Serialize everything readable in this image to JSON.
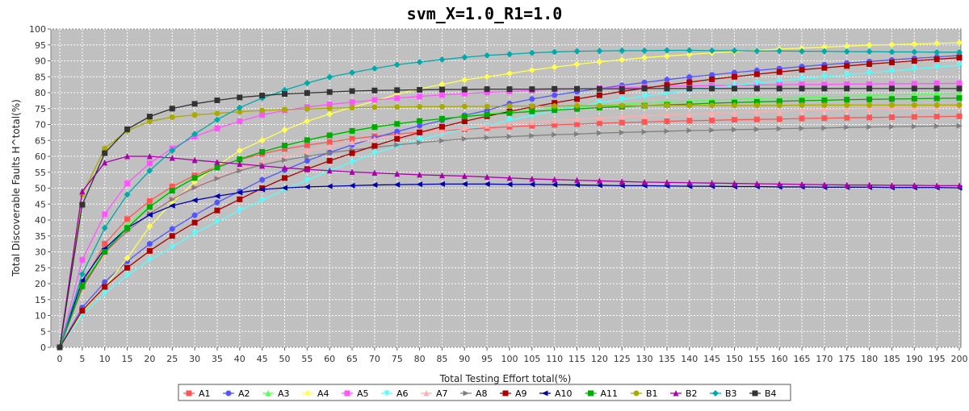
{
  "chart_data": {
    "type": "line",
    "title": "svm_X=1.0_R1=1.0",
    "xlabel": "Total Testing Effort total(%)",
    "ylabel": "Total Discoverable Faults H^total(%)",
    "xlim": [
      0,
      200
    ],
    "ylim": [
      0,
      100
    ],
    "x_ticks": [
      "0",
      "5",
      "10",
      "15",
      "20",
      "25",
      "30",
      "35",
      "40",
      "45",
      "50",
      "55",
      "60",
      "65",
      "70",
      "75",
      "80",
      "85",
      "90",
      "95",
      "100",
      "105",
      "110",
      "115",
      "120",
      "125",
      "130",
      "135",
      "140",
      "145",
      "150",
      "155",
      "160",
      "165",
      "170",
      "175",
      "180",
      "185",
      "190",
      "195",
      "200"
    ],
    "y_ticks": [
      "0",
      "5",
      "10",
      "15",
      "20",
      "25",
      "30",
      "35",
      "40",
      "45",
      "50",
      "55",
      "60",
      "65",
      "70",
      "75",
      "80",
      "85",
      "90",
      "95",
      "100"
    ],
    "grid": true,
    "legend_position": "bottom",
    "x": [
      0,
      5,
      10,
      15,
      20,
      25,
      30,
      35,
      40,
      45,
      50,
      55,
      60,
      65,
      70,
      75,
      80,
      85,
      90,
      95,
      100,
      105,
      110,
      115,
      120,
      125,
      130,
      135,
      140,
      145,
      150,
      155,
      160,
      165,
      170,
      175,
      180,
      185,
      190,
      195,
      200
    ],
    "series": [
      {
        "name": "A1",
        "color": "#ff5555",
        "marker": "square",
        "values": [
          0,
          19.8,
          32.5,
          40.3,
          46,
          50.5,
          54,
          56.8,
          59,
          60.8,
          62.3,
          63.5,
          64.5,
          65.5,
          66.3,
          67,
          67.6,
          68.1,
          68.5,
          68.9,
          69.3,
          69.6,
          69.9,
          70.1,
          70.4,
          70.6,
          70.8,
          71,
          71.2,
          71.3,
          71.5,
          71.6,
          71.7,
          71.9,
          72,
          72.1,
          72.2,
          72.3,
          72.4,
          72.5,
          72.6
        ]
      },
      {
        "name": "A2",
        "color": "#5555ff",
        "marker": "circle",
        "values": [
          0,
          12.5,
          20.5,
          27,
          32.5,
          37.2,
          41.5,
          45.5,
          49,
          52.6,
          55.7,
          58.6,
          61.2,
          63.6,
          65.8,
          67.8,
          69.6,
          71.3,
          72.9,
          74.4,
          76.6,
          78,
          79.2,
          80.3,
          81.3,
          82.3,
          83.2,
          84.1,
          84.9,
          85.6,
          86.3,
          87,
          87.6,
          88.2,
          88.8,
          89.3,
          89.8,
          90.3,
          90.8,
          91.2,
          91.7
        ]
      },
      {
        "name": "A3",
        "color": "#55ff55",
        "marker": "triangle-up",
        "values": [
          0,
          19.5,
          30.5,
          38.5,
          44.5,
          49.5,
          53.4,
          56.5,
          59.2,
          61.4,
          63.3,
          65,
          66.5,
          67.8,
          69,
          70.1,
          71,
          71.9,
          72.7,
          73.4,
          74,
          74.6,
          75.1,
          75.6,
          76,
          76.4,
          76.8,
          77.1,
          77.4,
          77.7,
          77.9,
          78.1,
          78.3,
          78.5,
          78.7,
          78.9,
          79.1,
          79.3,
          79.5,
          79.7,
          79.9
        ]
      },
      {
        "name": "A4",
        "color": "#ffff55",
        "marker": "diamond",
        "values": [
          0,
          11,
          19,
          28,
          38,
          45.5,
          52,
          57,
          61.8,
          65,
          68.3,
          71,
          73.3,
          75.4,
          77.3,
          79.5,
          81.2,
          82.6,
          84,
          85,
          86,
          87.1,
          88,
          88.9,
          89.7,
          90.3,
          91,
          91.5,
          92,
          92.5,
          92.9,
          93.3,
          93.7,
          94,
          94.3,
          94.6,
          94.9,
          95.1,
          95.3,
          95.5,
          95.7
        ]
      },
      {
        "name": "A5",
        "color": "#ff55ff",
        "marker": "square",
        "values": [
          0,
          27.5,
          41.8,
          51.5,
          57.8,
          62.5,
          66.2,
          68.8,
          71,
          73,
          74.4,
          75.5,
          76.3,
          77,
          77.7,
          78.3,
          78.8,
          79.3,
          79.7,
          80.1,
          80.4,
          80.7,
          81,
          81.2,
          81.4,
          81.6,
          81.8,
          82,
          82.1,
          82.2,
          82.3,
          82.4,
          82.5,
          82.6,
          82.6,
          82.7,
          82.7,
          82.8,
          82.8,
          82.9,
          82.9
        ]
      },
      {
        "name": "A6",
        "color": "#55ffff",
        "marker": "triangle-down",
        "values": [
          0,
          10,
          17,
          22.5,
          27.5,
          31.5,
          35.8,
          39.5,
          43,
          46.2,
          49.6,
          52.5,
          55.5,
          58.2,
          61,
          63.2,
          65.2,
          67,
          68.6,
          69.6,
          71.3,
          72.9,
          74.3,
          75.6,
          76.8,
          77.9,
          78.9,
          79.8,
          80.7,
          81.5,
          82.3,
          83,
          83.7,
          84.4,
          85,
          85.6,
          86.2,
          86.8,
          87.4,
          88,
          88.6
        ]
      },
      {
        "name": "A7",
        "color": "#ffafaf",
        "marker": "triangle-up",
        "values": [
          0,
          18,
          29,
          36.5,
          42.3,
          46.8,
          50.5,
          53.5,
          56,
          58.2,
          60,
          61.7,
          63.1,
          64.4,
          65.5,
          66.5,
          67.4,
          68.2,
          69,
          69.6,
          70.2,
          70.7,
          71.2,
          71.6,
          72,
          72.4,
          72.7,
          73,
          73.3,
          73.5,
          73.8,
          74,
          74.2,
          74.4,
          74.6,
          74.8,
          74.9,
          75.1,
          75.2,
          75.3,
          75.5
        ]
      },
      {
        "name": "A8",
        "color": "#808080",
        "marker": "triangle-right",
        "values": [
          0,
          18.5,
          29.8,
          36.5,
          42,
          46.5,
          50.2,
          53,
          55.5,
          57.3,
          58.8,
          60,
          61.1,
          62,
          62.8,
          63.6,
          64.3,
          64.9,
          65.5,
          65.9,
          66.2,
          66.5,
          66.8,
          67,
          67.3,
          67.5,
          67.7,
          67.9,
          68.1,
          68.2,
          68.4,
          68.5,
          68.7,
          68.8,
          68.9,
          69.1,
          69.2,
          69.3,
          69.4,
          69.5,
          69.6
        ]
      },
      {
        "name": "A9",
        "color": "#aa0000",
        "marker": "square",
        "values": [
          0,
          11.5,
          19,
          25,
          30.3,
          35,
          39.2,
          43,
          46.5,
          50,
          53.2,
          56,
          58.6,
          61,
          63.3,
          65.5,
          67.5,
          69.3,
          71,
          72.6,
          74.1,
          75.5,
          76.8,
          78,
          79.2,
          80.4,
          81.4,
          82.4,
          83.3,
          84.2,
          85,
          85.8,
          86.5,
          87.2,
          87.8,
          88.4,
          89,
          89.5,
          90,
          90.5,
          91
        ]
      },
      {
        "name": "A10",
        "color": "#0000aa",
        "marker": "triangle-left",
        "values": [
          0,
          21,
          31,
          37.5,
          41.6,
          44.5,
          46.2,
          47.5,
          48.6,
          49.6,
          50.1,
          50.4,
          50.6,
          50.8,
          51,
          51.1,
          51.2,
          51.3,
          51.3,
          51.3,
          51.2,
          51.2,
          51.1,
          51,
          50.9,
          50.8,
          50.8,
          50.7,
          50.6,
          50.6,
          50.5,
          50.5,
          50.4,
          50.4,
          50.3,
          50.3,
          50.3,
          50.2,
          50.2,
          50.2,
          50.1
        ]
      },
      {
        "name": "A11",
        "color": "#00aa00",
        "marker": "square",
        "values": [
          0,
          19.2,
          30,
          37.5,
          44.1,
          49.2,
          53.2,
          56.5,
          59.1,
          61.4,
          63.4,
          65.1,
          66.6,
          68,
          69.2,
          70.2,
          71.1,
          71.8,
          72.5,
          73.1,
          73.6,
          74.1,
          74.5,
          74.9,
          75.3,
          75.6,
          75.9,
          76.2,
          76.4,
          76.7,
          76.9,
          77.1,
          77.3,
          77.5,
          77.6,
          77.8,
          77.9,
          78,
          78.1,
          78.2,
          78.3
        ]
      },
      {
        "name": "B1",
        "color": "#aaaa00",
        "marker": "circle",
        "values": [
          0,
          48,
          62.5,
          68,
          71,
          72.3,
          73,
          73.5,
          74,
          74.4,
          74.7,
          74.9,
          75.1,
          75.3,
          75.4,
          75.5,
          75.6,
          75.6,
          75.7,
          75.7,
          75.8,
          75.8,
          75.8,
          75.9,
          75.9,
          75.9,
          75.9,
          76,
          76,
          76,
          76,
          76,
          76,
          76.1,
          76.1,
          76.1,
          76.1,
          76.1,
          76.1,
          76.1,
          76.1
        ]
      },
      {
        "name": "B2",
        "color": "#aa00aa",
        "marker": "triangle-up",
        "values": [
          0,
          49,
          58,
          60,
          60,
          59.5,
          58.8,
          58.2,
          57.6,
          57,
          56.4,
          55.9,
          55.5,
          55.1,
          54.8,
          54.5,
          54.2,
          54,
          53.8,
          53.5,
          53.2,
          52.9,
          52.7,
          52.5,
          52.3,
          52.1,
          51.9,
          51.8,
          51.7,
          51.6,
          51.5,
          51.4,
          51.3,
          51.2,
          51.1,
          51,
          51,
          50.9,
          50.9,
          50.8,
          50.8
        ]
      },
      {
        "name": "B3",
        "color": "#00aaaa",
        "marker": "diamond",
        "values": [
          0,
          23,
          37.5,
          48,
          55.5,
          61.8,
          67,
          71.5,
          75.3,
          78.3,
          80.8,
          83,
          84.9,
          86.3,
          87.6,
          88.8,
          89.6,
          90.4,
          91.1,
          91.7,
          92.1,
          92.5,
          92.8,
          93,
          93.1,
          93.2,
          93.2,
          93.3,
          93.3,
          93.2,
          93.2,
          93.1,
          93.1,
          93,
          93,
          92.9,
          92.9,
          92.8,
          92.8,
          92.7,
          92.7
        ]
      },
      {
        "name": "B4",
        "color": "#333333",
        "marker": "square",
        "values": [
          0,
          44.8,
          61,
          68.5,
          72.5,
          75,
          76.5,
          77.6,
          78.5,
          79.1,
          79.6,
          79.9,
          80.2,
          80.5,
          80.7,
          80.8,
          80.9,
          81,
          81,
          81.1,
          81.1,
          81.1,
          81.2,
          81.2,
          81.2,
          81.2,
          81.3,
          81.3,
          81.3,
          81.3,
          81.3,
          81.3,
          81.3,
          81.3,
          81.3,
          81.3,
          81.3,
          81.3,
          81.3,
          81.3,
          81.3
        ]
      }
    ]
  }
}
